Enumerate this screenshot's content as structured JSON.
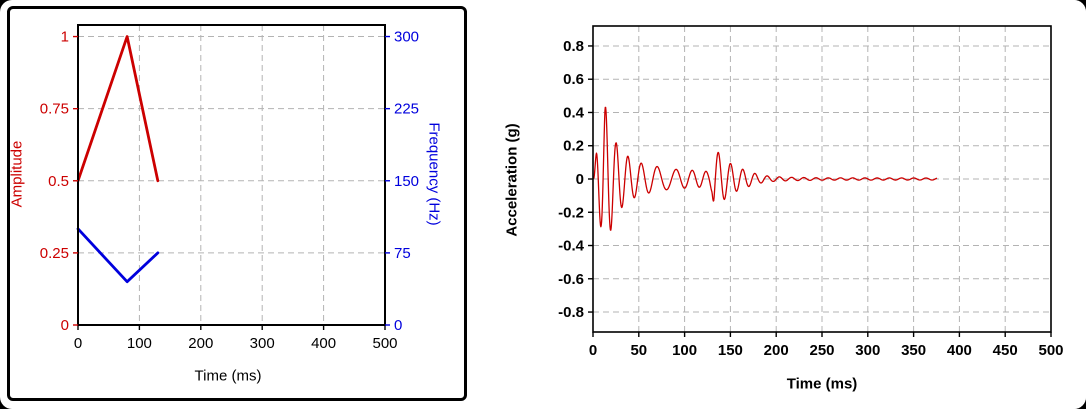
{
  "page": {
    "background": "#ffffff",
    "left_frame_color": "#000000",
    "grid_color": "#b3b3b3",
    "accent_red": "#cc0000",
    "accent_blue": "#0000dd"
  },
  "chart_data": [
    {
      "id": "input-profile",
      "type": "line",
      "title": "",
      "xlabel": "Time (ms)",
      "xlim": [
        0,
        500
      ],
      "xticks": [
        0,
        100,
        200,
        300,
        400,
        500
      ],
      "xtick_labels": [
        "0",
        "100",
        "200",
        "300",
        "400",
        "500"
      ],
      "grid": {
        "dashed": true,
        "color": "#b3b3b3"
      },
      "legend": "none",
      "y_left": {
        "label": "Amplitude",
        "color": "#cc0000",
        "lim": [
          0,
          1.04
        ],
        "ticks": [
          0,
          0.25,
          0.5,
          0.75,
          1
        ],
        "tick_labels": [
          "0",
          "0.25",
          "0.5",
          "0.75",
          "1"
        ]
      },
      "y_right": {
        "label": "Frequency (Hz)",
        "color": "#0000dd",
        "lim": [
          0,
          312
        ],
        "ticks": [
          0,
          75,
          150,
          225,
          300
        ],
        "tick_labels": [
          "0",
          "75",
          "150",
          "225",
          "300"
        ]
      },
      "series": [
        {
          "name": "amplitude-profile",
          "axis": "left",
          "color": "#cc0000",
          "width": 2.8,
          "points": [
            [
              0,
              0.5
            ],
            [
              80,
              1.0
            ],
            [
              130,
              0.5
            ]
          ]
        },
        {
          "name": "frequency-profile",
          "axis": "right",
          "color": "#0000dd",
          "width": 2.8,
          "points": [
            [
              0,
              100
            ],
            [
              80,
              45
            ],
            [
              130,
              75
            ]
          ]
        }
      ]
    },
    {
      "id": "acceleration-response",
      "type": "line",
      "title": "",
      "xlabel": "Time (ms)",
      "ylabel": "Acceleration (g)",
      "xlim": [
        0,
        500
      ],
      "ylim": [
        -0.92,
        0.92
      ],
      "xticks": [
        0,
        50,
        100,
        150,
        200,
        250,
        300,
        350,
        400,
        450,
        500
      ],
      "xtick_labels": [
        "0",
        "50",
        "100",
        "150",
        "200",
        "250",
        "300",
        "350",
        "400",
        "450",
        "500"
      ],
      "yticks": [
        -0.8,
        -0.6,
        -0.4,
        -0.2,
        0,
        0.2,
        0.4,
        0.6,
        0.8
      ],
      "ytick_labels": [
        "-0.8",
        "-0.6",
        "-0.4",
        "-0.2",
        "0",
        "0.2",
        "0.4",
        "0.6",
        "0.8"
      ],
      "grid": {
        "dashed": true,
        "color": "#b3b3b3"
      },
      "legend": "none",
      "series": [
        {
          "name": "acceleration-waveform",
          "axis": "left",
          "color": "#cc0000",
          "width": 1.3,
          "signal": {
            "t_start": 1,
            "t_end": 375,
            "dt": 0.4,
            "envelope": [
              [
                1,
                0.02
              ],
              [
                4,
                0.18
              ],
              [
                9,
                0.3
              ],
              [
                13,
                0.45
              ],
              [
                18,
                0.33
              ],
              [
                25,
                0.22
              ],
              [
                33,
                0.16
              ],
              [
                42,
                0.12
              ],
              [
                55,
                0.09
              ],
              [
                70,
                0.075
              ],
              [
                85,
                0.06
              ],
              [
                100,
                0.055
              ],
              [
                115,
                0.05
              ],
              [
                126,
                0.045
              ],
              [
                130,
                0.08
              ],
              [
                132,
                0.19
              ],
              [
                140,
                0.14
              ],
              [
                148,
                0.1
              ],
              [
                158,
                0.07
              ],
              [
                170,
                0.045
              ],
              [
                182,
                0.025
              ],
              [
                195,
                0.015
              ],
              [
                215,
                0.01
              ],
              [
                250,
                0.007
              ],
              [
                375,
                0.006
              ]
            ],
            "frequency_hz": [
              [
                0,
                100
              ],
              [
                80,
                45
              ],
              [
                130,
                75
              ],
              [
                375,
                75
              ]
            ]
          }
        }
      ]
    }
  ]
}
